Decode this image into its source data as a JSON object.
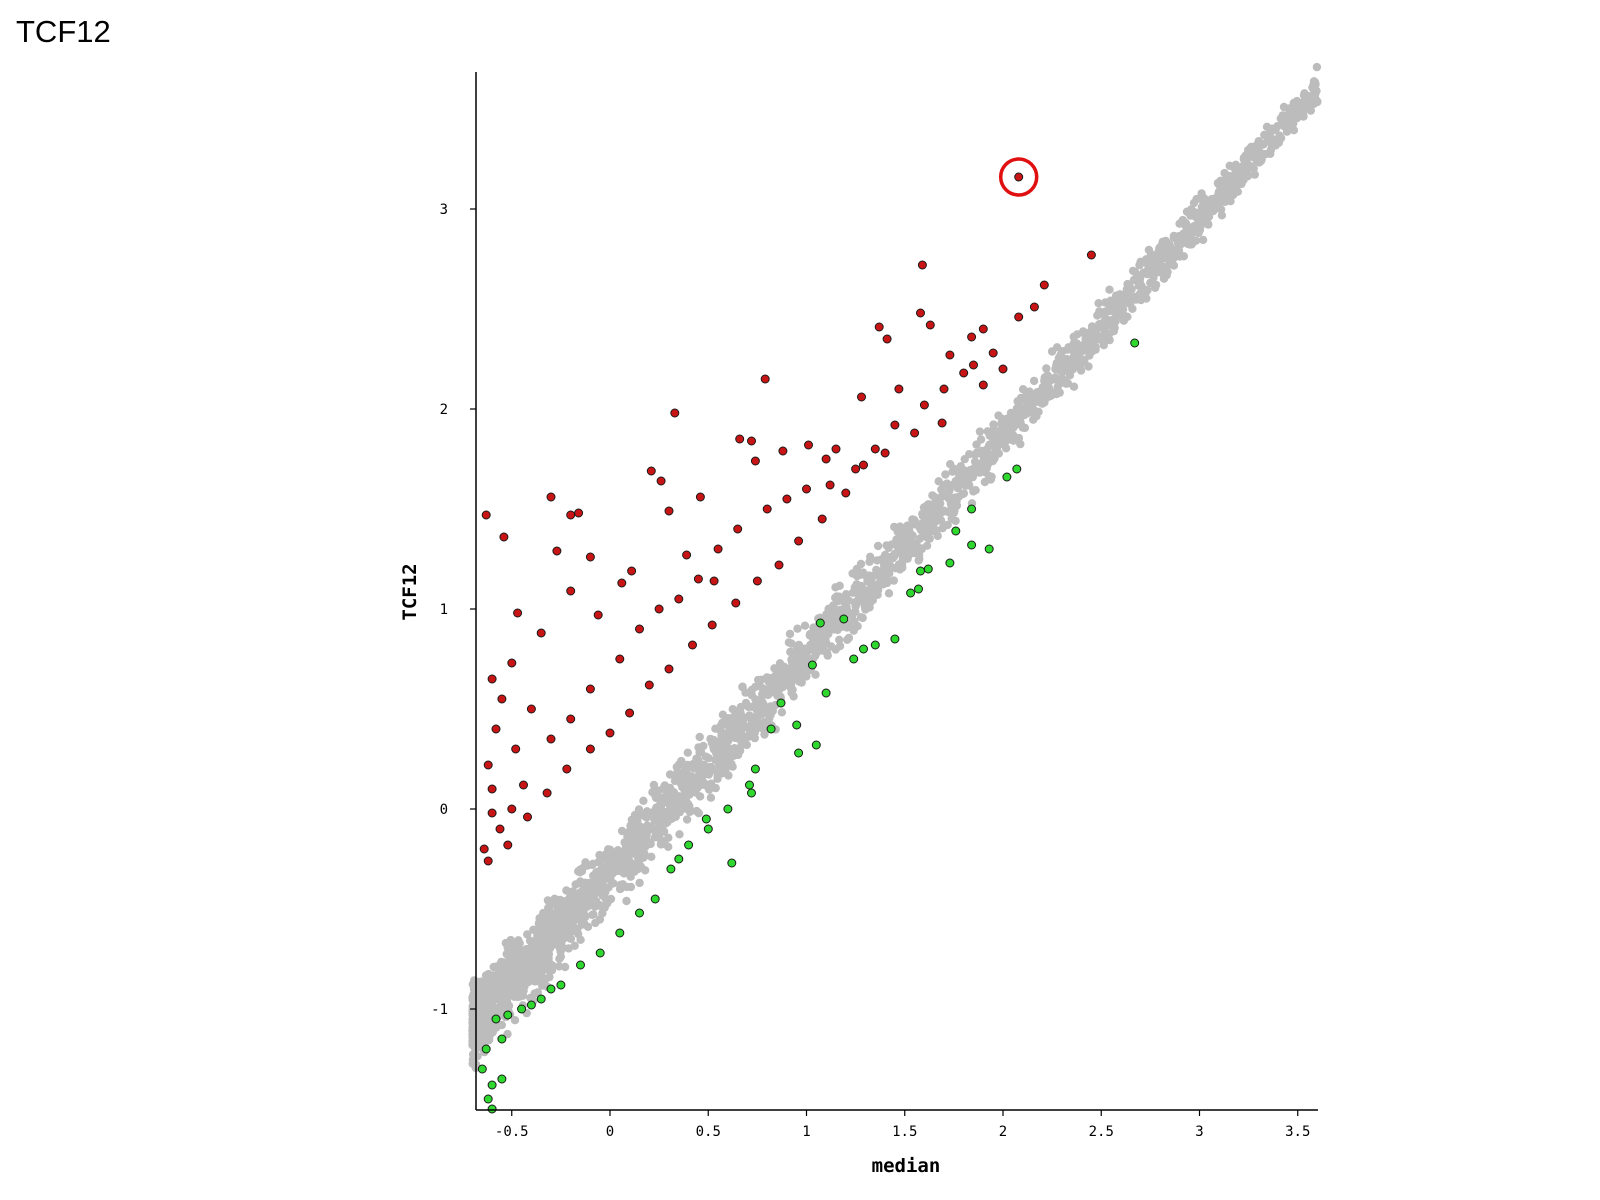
{
  "page": {
    "title": "TCF12"
  },
  "chart_data": {
    "type": "scatter",
    "title": "",
    "xlabel": "median",
    "ylabel": "TCF12",
    "xlim": [
      -0.72,
      3.62
    ],
    "ylim": [
      -1.52,
      3.7
    ],
    "x_ticks": [
      -0.5,
      0,
      0.5,
      1,
      1.5,
      2,
      2.5,
      3,
      3.5
    ],
    "x_tick_labels": [
      "-0.5",
      "0",
      "0.5",
      "1",
      "1.5",
      "2",
      "2.5",
      "3",
      "3.5"
    ],
    "y_ticks": [
      -1,
      0,
      1,
      2,
      3
    ],
    "y_tick_labels": [
      "-1",
      "0",
      "1",
      "2",
      "3"
    ],
    "grid": false,
    "colors": {
      "neutral": "#bcbcbc",
      "up": "#c81414",
      "down": "#2ed82e",
      "outline": "#1a1a1a",
      "highlight": "#e01010"
    },
    "series": [
      {
        "category": "neutral",
        "trend": {
          "x_range": [
            -0.7,
            3.6
          ],
          "slope": 1.09,
          "intercept": -0.32,
          "band_halfwidth": 0.28
        },
        "points": [
          [
            3.58,
            3.62
          ],
          [
            3.48,
            3.53
          ],
          [
            3.43,
            3.51
          ],
          [
            3.33,
            3.37
          ],
          [
            3.31,
            3.33
          ],
          [
            3.25,
            3.22
          ],
          [
            3.19,
            3.12
          ],
          [
            3.12,
            3.06
          ],
          [
            3.07,
            2.99
          ],
          [
            3.03,
            2.94
          ],
          [
            2.95,
            2.88
          ],
          [
            2.9,
            2.82
          ],
          [
            2.86,
            2.8
          ],
          [
            2.82,
            2.71
          ],
          [
            2.78,
            2.7
          ],
          [
            2.7,
            2.62
          ]
        ]
      },
      {
        "category": "up",
        "points": [
          [
            -0.63,
            1.47
          ],
          [
            -0.54,
            1.36
          ],
          [
            -0.3,
            1.56
          ],
          [
            -0.2,
            1.47
          ],
          [
            -0.16,
            1.48
          ],
          [
            -0.27,
            1.29
          ],
          [
            -0.1,
            1.26
          ],
          [
            -0.2,
            1.09
          ],
          [
            -0.35,
            0.88
          ],
          [
            -0.47,
            0.98
          ],
          [
            -0.5,
            0.73
          ],
          [
            -0.06,
            0.97
          ],
          [
            0.06,
            1.13
          ],
          [
            0.11,
            1.19
          ],
          [
            0.21,
            1.69
          ],
          [
            0.33,
            1.98
          ],
          [
            0.26,
            1.64
          ],
          [
            0.3,
            1.49
          ],
          [
            0.46,
            1.56
          ],
          [
            0.39,
            1.27
          ],
          [
            0.53,
            1.14
          ],
          [
            0.66,
            1.85
          ],
          [
            0.72,
            1.84
          ],
          [
            0.74,
            1.74
          ],
          [
            0.79,
            2.15
          ],
          [
            0.88,
            1.79
          ],
          [
            1.01,
            1.82
          ],
          [
            1.1,
            1.75
          ],
          [
            1.15,
            1.8
          ],
          [
            1.28,
            2.06
          ],
          [
            1.37,
            2.41
          ],
          [
            1.41,
            2.35
          ],
          [
            1.47,
            2.1
          ],
          [
            1.59,
            2.72
          ],
          [
            1.58,
            2.48
          ],
          [
            1.63,
            2.42
          ],
          [
            1.73,
            2.27
          ],
          [
            1.84,
            2.36
          ],
          [
            1.9,
            2.4
          ],
          [
            2.08,
            2.46
          ],
          [
            2.16,
            2.51
          ],
          [
            2.21,
            2.62
          ],
          [
            2.45,
            2.77
          ],
          [
            1.8,
            2.18
          ],
          [
            1.9,
            2.12
          ],
          [
            2.0,
            2.2
          ],
          [
            1.69,
            1.93
          ],
          [
            1.55,
            1.88
          ],
          [
            1.4,
            1.78
          ],
          [
            1.29,
            1.72
          ],
          [
            1.2,
            1.58
          ],
          [
            1.08,
            1.45
          ],
          [
            0.96,
            1.34
          ],
          [
            0.86,
            1.22
          ],
          [
            0.75,
            1.14
          ],
          [
            0.64,
            1.03
          ],
          [
            0.52,
            0.92
          ],
          [
            0.42,
            0.82
          ],
          [
            0.3,
            0.7
          ],
          [
            0.2,
            0.62
          ],
          [
            0.1,
            0.48
          ],
          [
            0.0,
            0.38
          ],
          [
            -0.1,
            0.3
          ],
          [
            -0.22,
            0.2
          ],
          [
            -0.32,
            0.08
          ],
          [
            -0.42,
            -0.04
          ],
          [
            -0.52,
            -0.18
          ],
          [
            -0.62,
            -0.26
          ],
          [
            -0.6,
            0.1
          ],
          [
            -0.58,
            0.4
          ],
          [
            -0.6,
            0.65
          ],
          [
            -0.55,
            0.55
          ],
          [
            -0.48,
            0.3
          ],
          [
            -0.4,
            0.5
          ],
          [
            -0.3,
            0.35
          ],
          [
            -0.2,
            0.45
          ],
          [
            -0.1,
            0.6
          ],
          [
            0.05,
            0.75
          ],
          [
            0.15,
            0.9
          ],
          [
            0.25,
            1.0
          ],
          [
            0.35,
            1.05
          ],
          [
            0.45,
            1.15
          ],
          [
            0.55,
            1.3
          ],
          [
            0.65,
            1.4
          ],
          [
            0.8,
            1.5
          ],
          [
            0.9,
            1.55
          ],
          [
            1.0,
            1.6
          ],
          [
            1.12,
            1.62
          ],
          [
            1.25,
            1.7
          ],
          [
            1.35,
            1.8
          ],
          [
            1.45,
            1.92
          ],
          [
            1.6,
            2.02
          ],
          [
            1.7,
            2.1
          ],
          [
            1.85,
            2.22
          ],
          [
            1.95,
            2.28
          ],
          [
            -0.64,
            -0.2
          ],
          [
            -0.56,
            -0.1
          ],
          [
            -0.5,
            0.0
          ],
          [
            -0.44,
            0.12
          ],
          [
            -0.6,
            -0.02
          ],
          [
            -0.62,
            0.22
          ]
        ]
      },
      {
        "category": "down",
        "points": [
          [
            2.67,
            2.33
          ],
          [
            2.07,
            1.7
          ],
          [
            2.02,
            1.66
          ],
          [
            1.93,
            1.3
          ],
          [
            1.84,
            1.5
          ],
          [
            1.84,
            1.32
          ],
          [
            1.76,
            1.39
          ],
          [
            1.73,
            1.23
          ],
          [
            1.62,
            1.2
          ],
          [
            1.58,
            1.19
          ],
          [
            1.57,
            1.1
          ],
          [
            1.53,
            1.08
          ],
          [
            1.45,
            0.85
          ],
          [
            1.35,
            0.82
          ],
          [
            1.29,
            0.8
          ],
          [
            1.24,
            0.75
          ],
          [
            1.19,
            0.95
          ],
          [
            1.07,
            0.93
          ],
          [
            1.03,
            0.72
          ],
          [
            1.1,
            0.58
          ],
          [
            1.05,
            0.32
          ],
          [
            0.95,
            0.42
          ],
          [
            0.87,
            0.53
          ],
          [
            0.82,
            0.4
          ],
          [
            0.74,
            0.2
          ],
          [
            0.71,
            0.12
          ],
          [
            0.6,
            0.0
          ],
          [
            0.49,
            -0.05
          ],
          [
            0.4,
            -0.18
          ],
          [
            0.31,
            -0.3
          ],
          [
            0.23,
            -0.45
          ],
          [
            0.15,
            -0.52
          ],
          [
            0.05,
            -0.62
          ],
          [
            -0.05,
            -0.72
          ],
          [
            -0.15,
            -0.78
          ],
          [
            -0.25,
            -0.88
          ],
          [
            -0.35,
            -0.95
          ],
          [
            -0.45,
            -1.0
          ],
          [
            -0.52,
            -1.03
          ],
          [
            -0.58,
            -1.05
          ],
          [
            -0.63,
            -1.2
          ],
          [
            -0.65,
            -1.3
          ],
          [
            -0.62,
            -1.45
          ],
          [
            -0.6,
            -1.5
          ],
          [
            -0.55,
            -1.35
          ],
          [
            -0.6,
            -1.38
          ],
          [
            -0.55,
            -1.15
          ],
          [
            0.62,
            -0.27
          ],
          [
            0.72,
            0.08
          ],
          [
            0.96,
            0.28
          ],
          [
            0.5,
            -0.1
          ],
          [
            0.35,
            -0.25
          ],
          [
            -0.3,
            -0.9
          ],
          [
            -0.4,
            -0.98
          ]
        ]
      },
      {
        "category": "highlighted",
        "points": [
          [
            2.08,
            3.16
          ]
        ]
      }
    ]
  }
}
